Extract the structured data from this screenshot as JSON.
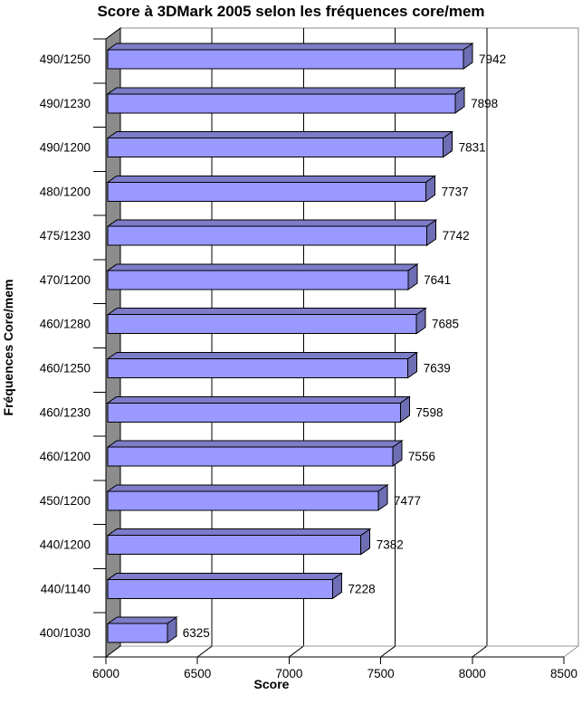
{
  "chart_data": {
    "type": "bar",
    "orientation": "horizontal",
    "style": "3d",
    "title": "Score à 3DMark 2005 selon les fréquences core/mem",
    "xlabel": "Score",
    "ylabel": "Fréquences Core/mem",
    "categories": [
      "490/1250",
      "490/1230",
      "490/1200",
      "480/1200",
      "475/1230",
      "470/1200",
      "460/1280",
      "460/1250",
      "460/1230",
      "460/1200",
      "450/1200",
      "440/1200",
      "440/1140",
      "400/1030"
    ],
    "values": [
      7942,
      7898,
      7831,
      7737,
      7742,
      7641,
      7685,
      7639,
      7598,
      7556,
      7477,
      7382,
      7228,
      6325
    ],
    "xlim": [
      6000,
      8500
    ],
    "xticks": [
      6000,
      6500,
      7000,
      7500,
      8000,
      8500
    ],
    "grid": true,
    "legend": false,
    "data_labels": true,
    "colors": {
      "bar_front": "#9999FF",
      "bar_top": "#7C7CC8",
      "bar_side": "#6E6EB4",
      "wall": "#8C8C8C",
      "plot_background": "#FFFFFF",
      "page_background": "#FFFFFF",
      "gridline": "#000000",
      "frame": "#888888",
      "axis": "#000000",
      "floor_back_edge": "#999999",
      "text": "#000000"
    }
  }
}
